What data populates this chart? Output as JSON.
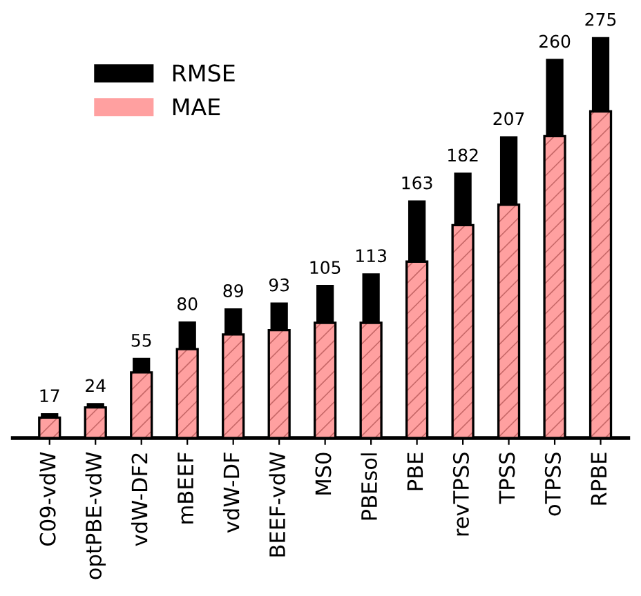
{
  "chart_data": {
    "type": "bar",
    "categories": [
      "C09-vdW",
      "optPBE-vdW",
      "vdW-DF2",
      "mBEEF",
      "vdW-DF",
      "BEEF-vdW",
      "MS0",
      "PBEsol",
      "PBE",
      "revTPSS",
      "TPSS",
      "oTPSS",
      "RPBE"
    ],
    "series": [
      {
        "name": "RMSE",
        "color": "#000000",
        "values": [
          17,
          24,
          55,
          80,
          89,
          93,
          105,
          113,
          163,
          182,
          207,
          260,
          275
        ],
        "value_labels": [
          "17",
          "24",
          "55",
          "80",
          "89",
          "93",
          "105",
          "113",
          "163",
          "182",
          "207",
          "260",
          "275"
        ]
      },
      {
        "name": "MAE",
        "color": "#ffa0a0",
        "values": [
          14,
          21,
          45,
          61,
          71,
          74,
          79,
          79,
          121,
          146,
          160,
          207,
          224
        ]
      }
    ],
    "legend": "top left",
    "grid": false
  }
}
